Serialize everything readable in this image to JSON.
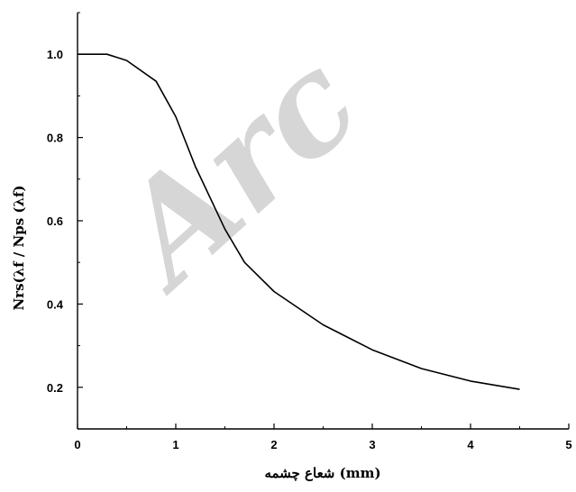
{
  "watermark": "Arc",
  "chart_data": {
    "type": "line",
    "xlabel": "شعاع چشمه (mm)",
    "ylabel": "Nrs(λf / Nps (λf)",
    "xlim": [
      0,
      5
    ],
    "ylim": [
      0.1,
      1.1
    ],
    "x_ticks": [
      0,
      1,
      2,
      3,
      4,
      5
    ],
    "x_tick_labels": [
      "0",
      "1",
      "2",
      "3",
      "4",
      "5"
    ],
    "y_ticks": [
      0.2,
      0.4,
      0.6,
      0.8,
      1.0
    ],
    "y_tick_labels": [
      "0.2",
      "0.4",
      "0.6",
      "0.8",
      "1.0"
    ],
    "grid": false,
    "series": [
      {
        "color": "#000000",
        "x": [
          0,
          0.3,
          0.5,
          0.8,
          1.0,
          1.2,
          1.5,
          1.7,
          2.0,
          2.5,
          3.0,
          3.5,
          4.0,
          4.5
        ],
        "y": [
          1.0,
          1.0,
          0.985,
          0.935,
          0.85,
          0.73,
          0.58,
          0.5,
          0.43,
          0.35,
          0.29,
          0.245,
          0.215,
          0.195
        ]
      }
    ]
  }
}
